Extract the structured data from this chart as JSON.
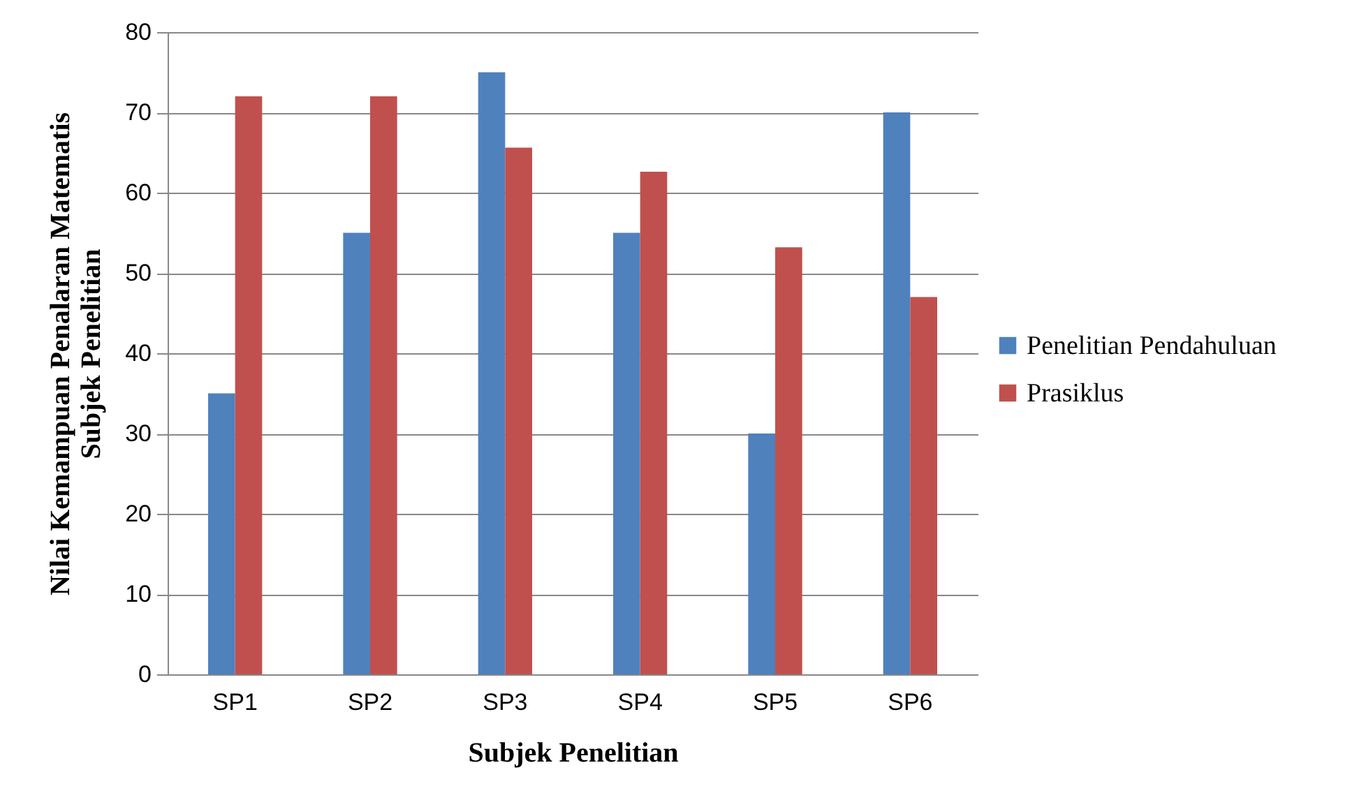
{
  "chart_data": {
    "type": "bar",
    "xlabel": "Subjek Penelitian",
    "ylabel": "Nilai Kemampuan Penalaran Matematis\nSubjek Penelitian",
    "categories": [
      "SP1",
      "SP2",
      "SP3",
      "SP4",
      "SP5",
      "SP6"
    ],
    "series": [
      {
        "name": "Penelitian Pendahuluan",
        "color": "#4f81bd",
        "values": [
          35,
          55,
          75,
          55,
          30,
          70
        ]
      },
      {
        "name": "Prasiklus",
        "color": "#c0504d",
        "values": [
          72,
          72,
          65.6,
          62.6,
          53.2,
          47
        ]
      }
    ],
    "ylim": [
      0,
      80
    ],
    "yticks": [
      0,
      10,
      20,
      30,
      40,
      50,
      60,
      70,
      80
    ],
    "grid": "y",
    "legend": "right"
  }
}
